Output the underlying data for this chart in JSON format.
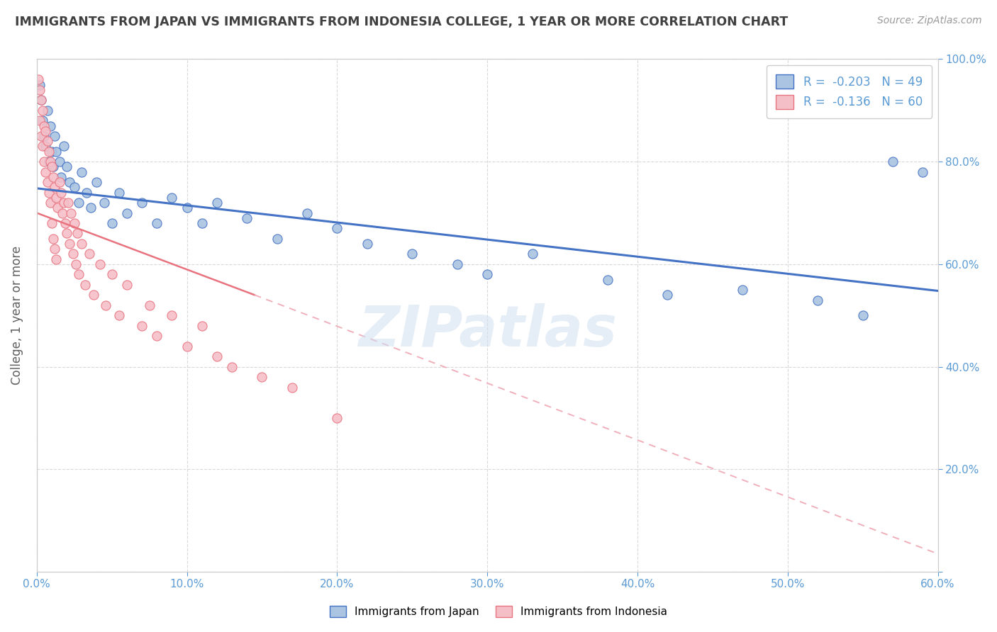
{
  "title": "IMMIGRANTS FROM JAPAN VS IMMIGRANTS FROM INDONESIA COLLEGE, 1 YEAR OR MORE CORRELATION CHART",
  "source_text": "Source: ZipAtlas.com",
  "ylabel": "College, 1 year or more",
  "xlim": [
    0.0,
    0.6
  ],
  "ylim": [
    0.0,
    1.0
  ],
  "xtick_labels": [
    "0.0%",
    "10.0%",
    "20.0%",
    "30.0%",
    "40.0%",
    "50.0%",
    "60.0%"
  ],
  "xtick_vals": [
    0.0,
    0.1,
    0.2,
    0.3,
    0.4,
    0.5,
    0.6
  ],
  "ytick_vals": [
    0.0,
    0.2,
    0.4,
    0.6,
    0.8,
    1.0
  ],
  "ytick_labels_r": [
    "",
    "20.0%",
    "40.0%",
    "60.0%",
    "80.0%",
    "100.0%"
  ],
  "series1_color": "#aac4e2",
  "series2_color": "#f5bfc8",
  "line1_color": "#4472c4",
  "line2_color": "#e8737f",
  "line2_dash_color": "#f0b0bb",
  "R1": -0.203,
  "N1": 49,
  "R2": -0.136,
  "N2": 60,
  "legend_label1": "Immigrants from Japan",
  "legend_label2": "Immigrants from Indonesia",
  "watermark": "ZIPatlas",
  "background_color": "#ffffff",
  "grid_color": "#d0d0d0",
  "title_color": "#404040",
  "axis_label_color": "#606060",
  "japan_x": [
    0.002,
    0.003,
    0.004,
    0.005,
    0.006,
    0.007,
    0.008,
    0.009,
    0.01,
    0.011,
    0.012,
    0.013,
    0.015,
    0.016,
    0.018,
    0.02,
    0.022,
    0.025,
    0.028,
    0.03,
    0.033,
    0.036,
    0.04,
    0.045,
    0.05,
    0.055,
    0.06,
    0.07,
    0.08,
    0.09,
    0.1,
    0.11,
    0.12,
    0.14,
    0.16,
    0.18,
    0.2,
    0.22,
    0.25,
    0.28,
    0.3,
    0.33,
    0.38,
    0.42,
    0.47,
    0.52,
    0.55,
    0.57,
    0.59
  ],
  "japan_y": [
    0.95,
    0.92,
    0.88,
    0.85,
    0.83,
    0.9,
    0.8,
    0.87,
    0.82,
    0.79,
    0.85,
    0.82,
    0.8,
    0.77,
    0.83,
    0.79,
    0.76,
    0.75,
    0.72,
    0.78,
    0.74,
    0.71,
    0.76,
    0.72,
    0.68,
    0.74,
    0.7,
    0.72,
    0.68,
    0.73,
    0.71,
    0.68,
    0.72,
    0.69,
    0.65,
    0.7,
    0.67,
    0.64,
    0.62,
    0.6,
    0.58,
    0.62,
    0.57,
    0.54,
    0.55,
    0.53,
    0.5,
    0.8,
    0.78
  ],
  "indonesia_x": [
    0.001,
    0.002,
    0.002,
    0.003,
    0.003,
    0.004,
    0.004,
    0.005,
    0.005,
    0.006,
    0.006,
    0.007,
    0.007,
    0.008,
    0.008,
    0.009,
    0.009,
    0.01,
    0.01,
    0.011,
    0.011,
    0.012,
    0.012,
    0.013,
    0.013,
    0.014,
    0.015,
    0.016,
    0.017,
    0.018,
    0.019,
    0.02,
    0.021,
    0.022,
    0.023,
    0.024,
    0.025,
    0.026,
    0.027,
    0.028,
    0.03,
    0.032,
    0.035,
    0.038,
    0.042,
    0.046,
    0.05,
    0.055,
    0.06,
    0.07,
    0.075,
    0.08,
    0.09,
    0.1,
    0.11,
    0.12,
    0.13,
    0.15,
    0.17,
    0.2
  ],
  "indonesia_y": [
    0.96,
    0.94,
    0.88,
    0.92,
    0.85,
    0.9,
    0.83,
    0.87,
    0.8,
    0.86,
    0.78,
    0.84,
    0.76,
    0.82,
    0.74,
    0.8,
    0.72,
    0.79,
    0.68,
    0.77,
    0.65,
    0.75,
    0.63,
    0.73,
    0.61,
    0.71,
    0.76,
    0.74,
    0.7,
    0.72,
    0.68,
    0.66,
    0.72,
    0.64,
    0.7,
    0.62,
    0.68,
    0.6,
    0.66,
    0.58,
    0.64,
    0.56,
    0.62,
    0.54,
    0.6,
    0.52,
    0.58,
    0.5,
    0.56,
    0.48,
    0.52,
    0.46,
    0.5,
    0.44,
    0.48,
    0.42,
    0.4,
    0.38,
    0.36,
    0.3
  ],
  "trendline1_x0": 0.0,
  "trendline1_y0": 0.748,
  "trendline1_x1": 0.6,
  "trendline1_y1": 0.548,
  "trendline2_solid_x0": 0.0,
  "trendline2_solid_y0": 0.7,
  "trendline2_solid_x1": 0.145,
  "trendline2_solid_y1": 0.54,
  "trendline2_dash_x0": 0.145,
  "trendline2_dash_y0": 0.54,
  "trendline2_dash_x1": 0.6,
  "trendline2_dash_y1": 0.035
}
